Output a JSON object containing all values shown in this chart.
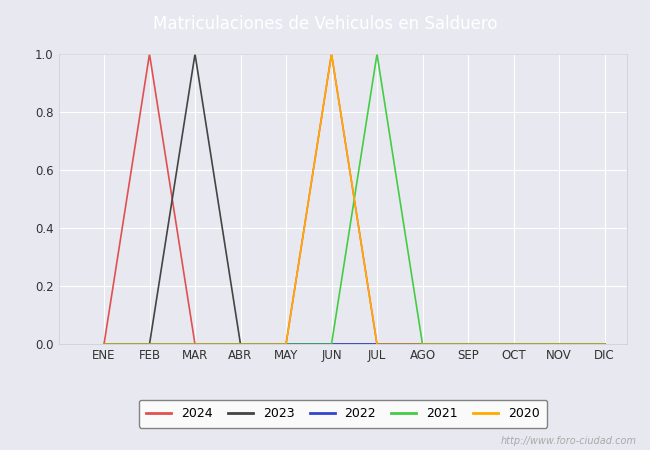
{
  "title": "Matriculaciones de Vehiculos en Salduero",
  "title_color": "#ffffff",
  "title_bg_color": "#4472c4",
  "months": [
    "ENE",
    "FEB",
    "MAR",
    "ABR",
    "MAY",
    "JUN",
    "JUL",
    "AGO",
    "SEP",
    "OCT",
    "NOV",
    "DIC"
  ],
  "series": [
    {
      "year": "2024",
      "color": "#e05050",
      "data": [
        0,
        1,
        0,
        0,
        0,
        1,
        0,
        0,
        0,
        0,
        0,
        0
      ]
    },
    {
      "year": "2023",
      "color": "#444444",
      "data": [
        0,
        0,
        1,
        0,
        0,
        0,
        0,
        0,
        0,
        0,
        0,
        0
      ]
    },
    {
      "year": "2022",
      "color": "#3344cc",
      "data": [
        0,
        0,
        0,
        0,
        0,
        0,
        0,
        0,
        0,
        0,
        0,
        0
      ]
    },
    {
      "year": "2021",
      "color": "#44cc44",
      "data": [
        0,
        0,
        0,
        0,
        0,
        0,
        1,
        0,
        0,
        0,
        0,
        0
      ]
    },
    {
      "year": "2020",
      "color": "#ffaa00",
      "data": [
        0,
        0,
        0,
        0,
        0,
        1,
        0,
        0,
        0,
        0,
        0,
        0
      ]
    }
  ],
  "ylim": [
    0.0,
    1.0
  ],
  "yticks": [
    0.0,
    0.2,
    0.4,
    0.6,
    0.8,
    1.0
  ],
  "bg_color": "#e8e8f0",
  "grid_color": "#ffffff",
  "watermark": "http://www.foro-ciudad.com"
}
